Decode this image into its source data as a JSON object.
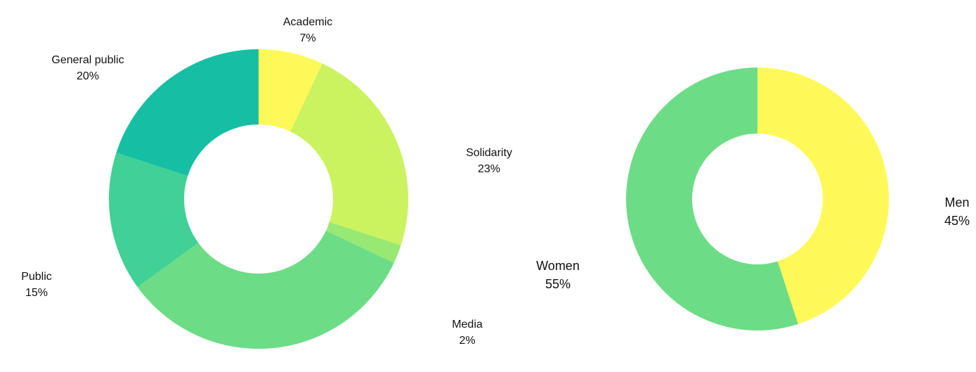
{
  "chart_data": [
    {
      "type": "donut",
      "title": "",
      "slices": [
        {
          "label": "Academic",
          "value": 7,
          "value_label": "7%",
          "color": "#FEF958"
        },
        {
          "label": "Solidarity",
          "value": 23,
          "value_label": "23%",
          "color": "#CAF35F"
        },
        {
          "label": "Media",
          "value": 2,
          "value_label": "2%",
          "color": "#98E874"
        },
        {
          "label": "",
          "value": 33,
          "value_label": "",
          "color": "#6DDC87"
        },
        {
          "label": "Public",
          "value": 15,
          "value_label": "15%",
          "color": "#41D095"
        },
        {
          "label": "General public",
          "value": 20,
          "value_label": "20%",
          "color": "#16BFA3"
        }
      ]
    },
    {
      "type": "donut",
      "title": "",
      "slices": [
        {
          "label": "Men",
          "value": 45,
          "value_label": "45%",
          "color": "#FEF958"
        },
        {
          "label": "Women",
          "value": 55,
          "value_label": "55%",
          "color": "#6DDC87"
        }
      ]
    }
  ]
}
